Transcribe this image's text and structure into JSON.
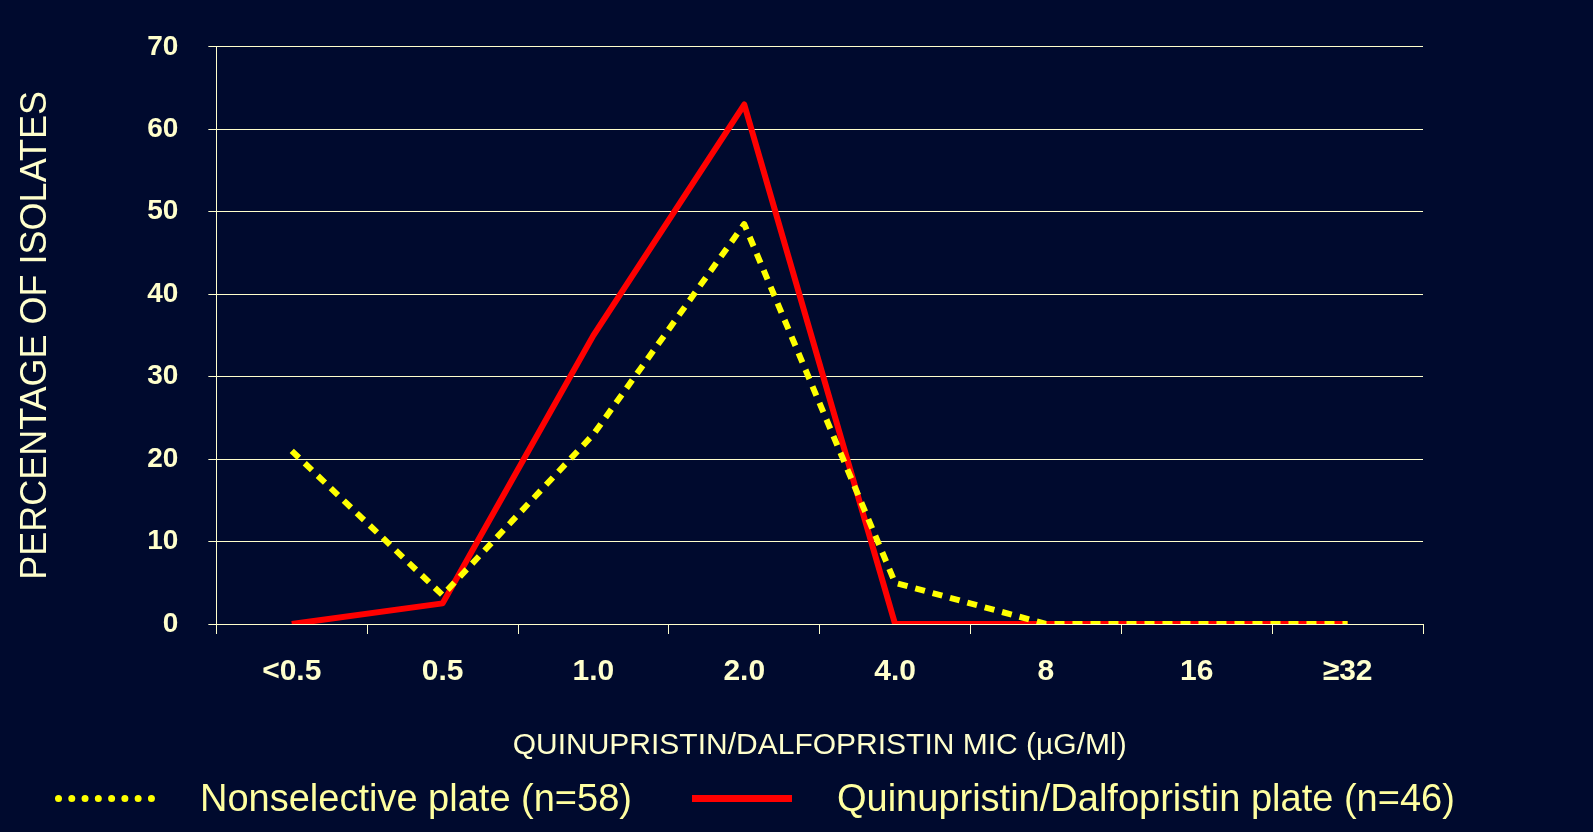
{
  "chart_data": {
    "type": "line",
    "xlabel": "QUINUPRISTIN/DALFOPRISTIN MIC (µG/Ml)",
    "ylabel": "PERCENTAGE OF ISOLATES",
    "categories": [
      "<0.5",
      "0.5",
      "1.0",
      "2.0",
      "4.0",
      "8",
      "16",
      "≥32"
    ],
    "ylim": [
      0,
      70
    ],
    "yticks": [
      0,
      10,
      20,
      30,
      40,
      50,
      60,
      70
    ],
    "grid": "y",
    "legend": "bottom",
    "marker": "none",
    "series": [
      {
        "name": "Nonselective plate (n=58)",
        "color": "#ffff00",
        "line_style": "dashed",
        "values": [
          21,
          3.5,
          23,
          48.5,
          5,
          0,
          0,
          0
        ]
      },
      {
        "name": "Quinupristin/Dalfopristin plate (n=46)",
        "color": "#ff0000",
        "line_style": "solid",
        "values": [
          0,
          2.5,
          35,
          63,
          0,
          0,
          0,
          0
        ]
      }
    ]
  }
}
